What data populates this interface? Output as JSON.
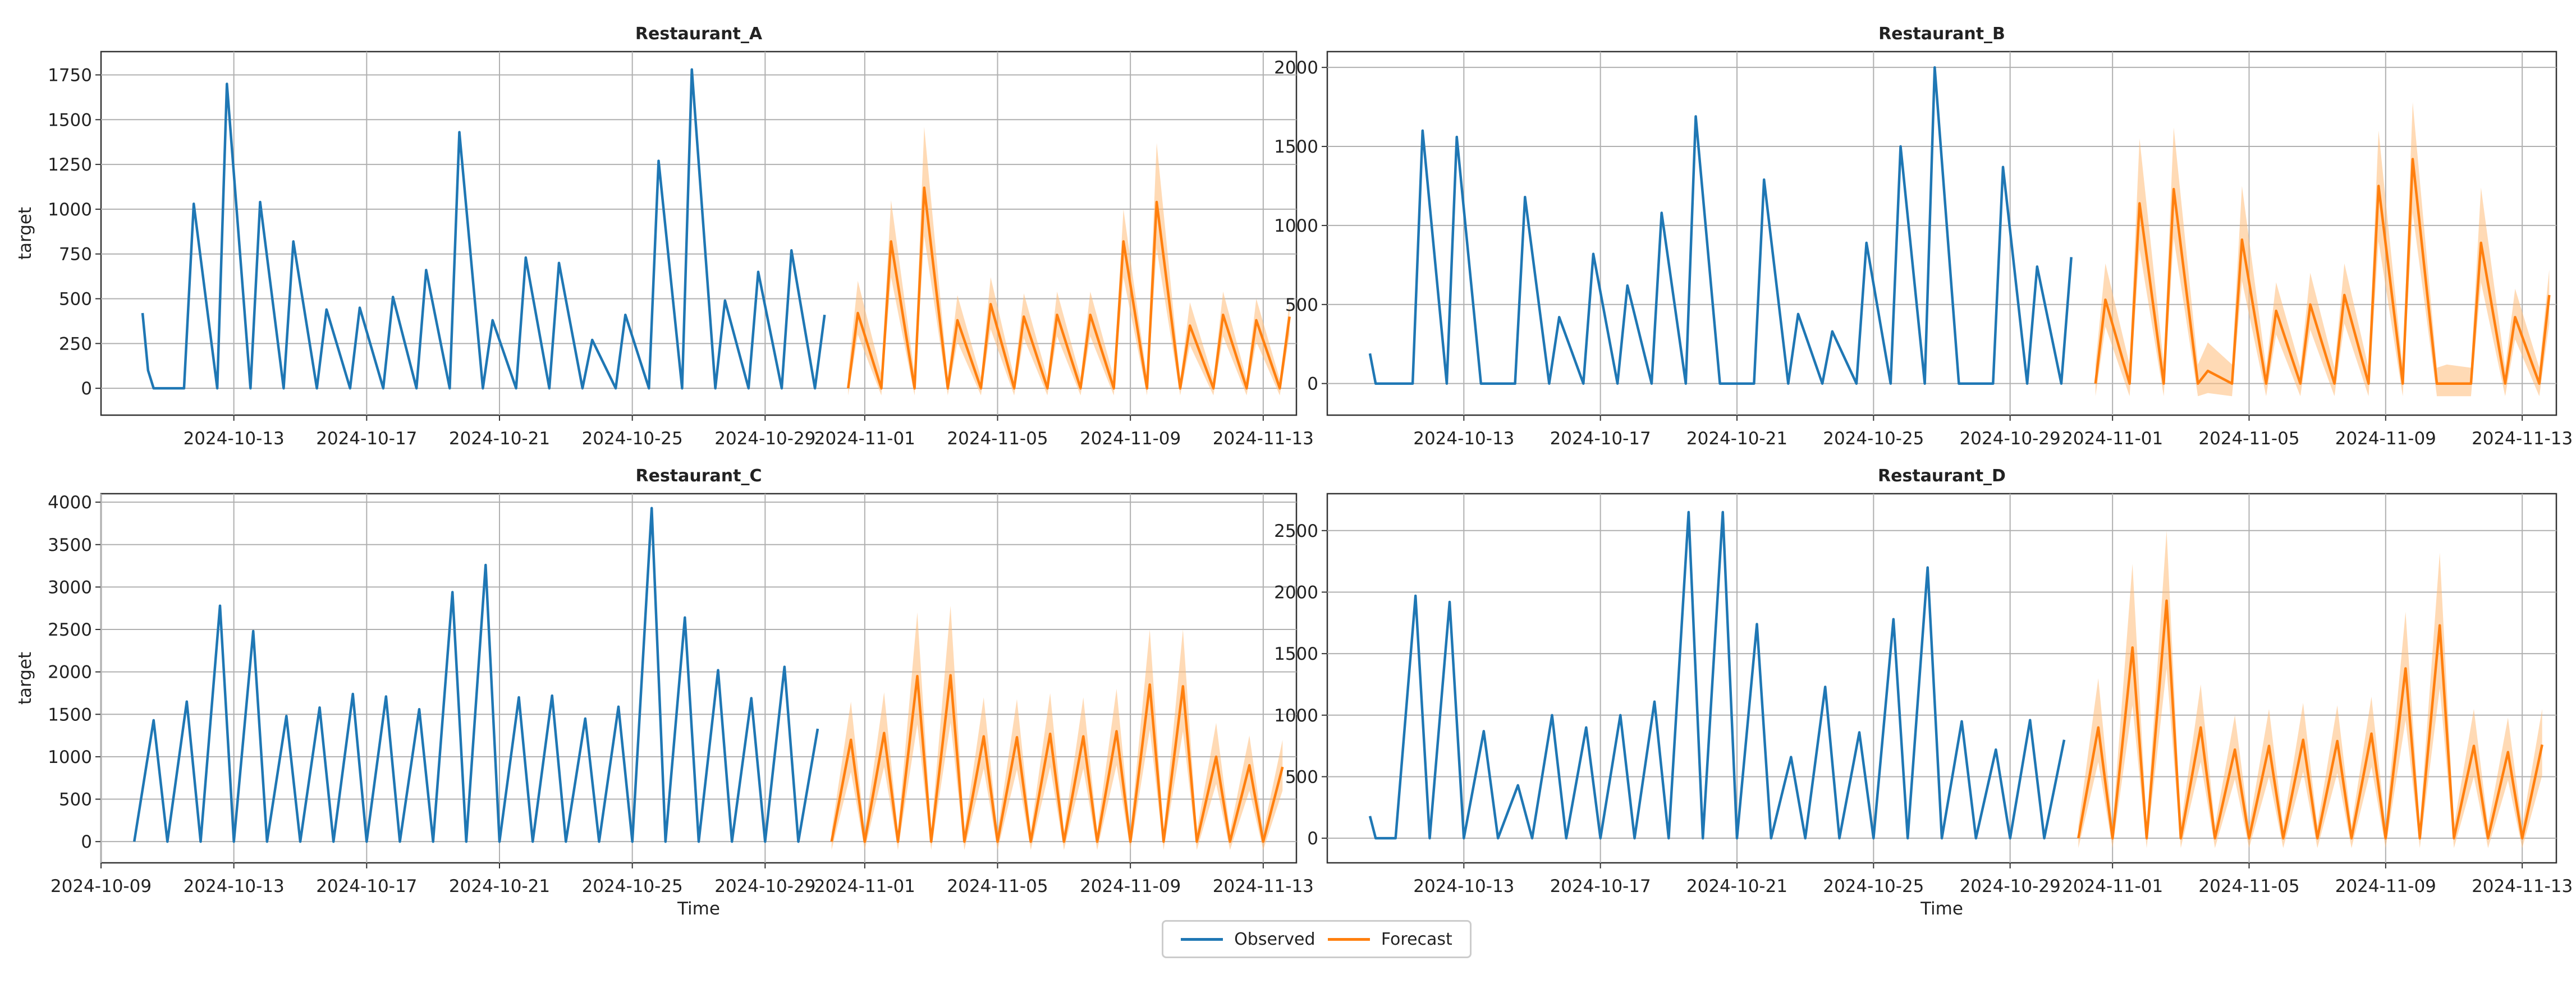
{
  "legend": {
    "observed_label": "Observed",
    "forecast_label": "Forecast",
    "observed_color": "#1f77b4",
    "forecast_color": "#ff7f0e",
    "forecast_band_color": "#ffbb78"
  },
  "chart_data": [
    {
      "type": "line",
      "title": "Restaurant_A",
      "xlabel": "",
      "ylabel": "target",
      "xlim": [
        "2024-10-09",
        "2024-11-14"
      ],
      "ylim": [
        -150,
        1880
      ],
      "yticks": [
        0,
        250,
        500,
        750,
        1000,
        1250,
        1500,
        1750
      ],
      "xticks": [
        "2024-10-13",
        "2024-10-17",
        "2024-10-21",
        "2024-10-25",
        "2024-10-29",
        "2024-11-01",
        "2024-11-05",
        "2024-11-09",
        "2024-11-13"
      ],
      "grid": true,
      "observed": {
        "x": [
          "2024-10-10 06:00",
          "2024-10-10 10:00",
          "2024-10-10 14:00",
          "2024-10-11 12:00",
          "2024-10-11 19:00",
          "2024-10-12 12:00",
          "2024-10-12 19:00",
          "2024-10-13 12:00",
          "2024-10-13 19:00",
          "2024-10-14 12:00",
          "2024-10-14 19:00",
          "2024-10-15 12:00",
          "2024-10-15 19:00",
          "2024-10-16 12:00",
          "2024-10-16 19:00",
          "2024-10-17 12:00",
          "2024-10-17 19:00",
          "2024-10-18 12:00",
          "2024-10-18 19:00",
          "2024-10-19 12:00",
          "2024-10-19 19:00",
          "2024-10-20 12:00",
          "2024-10-20 19:00",
          "2024-10-21 12:00",
          "2024-10-21 19:00",
          "2024-10-22 12:00",
          "2024-10-22 19:00",
          "2024-10-23 12:00",
          "2024-10-23 19:00",
          "2024-10-24 12:00",
          "2024-10-24 19:00",
          "2024-10-25 12:00",
          "2024-10-25 19:00",
          "2024-10-26 12:00",
          "2024-10-26 19:00",
          "2024-10-27 12:00",
          "2024-10-27 19:00",
          "2024-10-28 12:00",
          "2024-10-28 19:00",
          "2024-10-29 12:00",
          "2024-10-29 19:00",
          "2024-10-30 12:00",
          "2024-10-30 19:00"
        ],
        "y": [
          420,
          100,
          0,
          0,
          1030,
          0,
          1700,
          0,
          1040,
          0,
          820,
          0,
          440,
          0,
          450,
          0,
          510,
          0,
          660,
          0,
          1430,
          0,
          380,
          0,
          730,
          0,
          700,
          0,
          270,
          0,
          410,
          0,
          1270,
          0,
          1780,
          0,
          490,
          0,
          650,
          0,
          770,
          0,
          410
        ]
      },
      "forecast": {
        "x": [
          "2024-10-31 12:00",
          "2024-10-31 19:00",
          "2024-11-01 12:00",
          "2024-11-01 19:00",
          "2024-11-02 12:00",
          "2024-11-02 19:00",
          "2024-11-03 12:00",
          "2024-11-03 19:00",
          "2024-11-04 12:00",
          "2024-11-04 19:00",
          "2024-11-05 12:00",
          "2024-11-05 19:00",
          "2024-11-06 12:00",
          "2024-11-06 19:00",
          "2024-11-07 12:00",
          "2024-11-07 19:00",
          "2024-11-08 12:00",
          "2024-11-08 19:00",
          "2024-11-09 12:00",
          "2024-11-09 19:00",
          "2024-11-10 12:00",
          "2024-11-10 19:00",
          "2024-11-11 12:00",
          "2024-11-11 19:00",
          "2024-11-12 12:00",
          "2024-11-12 19:00",
          "2024-11-13 12:00",
          "2024-11-13 19:00"
        ],
        "y": [
          0,
          420,
          0,
          820,
          0,
          1120,
          0,
          380,
          0,
          470,
          0,
          400,
          0,
          410,
          0,
          410,
          0,
          820,
          0,
          1040,
          0,
          350,
          0,
          410,
          0,
          380,
          0,
          400
        ],
        "upper": [
          80,
          600,
          80,
          1050,
          80,
          1460,
          60,
          520,
          60,
          620,
          60,
          530,
          60,
          540,
          60,
          540,
          60,
          1000,
          60,
          1370,
          50,
          480,
          50,
          540,
          50,
          500,
          50,
          480
        ],
        "lower": [
          -40,
          300,
          -40,
          620,
          -40,
          850,
          -40,
          260,
          -40,
          330,
          -40,
          280,
          -40,
          290,
          -40,
          290,
          -40,
          620,
          -40,
          780,
          -40,
          240,
          -40,
          290,
          -40,
          260,
          -40,
          300
        ]
      }
    },
    {
      "type": "line",
      "title": "Restaurant_B",
      "xlabel": "",
      "ylabel": "",
      "xlim": [
        "2024-10-09",
        "2024-11-14"
      ],
      "ylim": [
        -200,
        2100
      ],
      "yticks": [
        0,
        500,
        1000,
        1500,
        2000
      ],
      "xticks": [
        "2024-10-13",
        "2024-10-17",
        "2024-10-21",
        "2024-10-25",
        "2024-10-29",
        "2024-11-01",
        "2024-11-05",
        "2024-11-09",
        "2024-11-13"
      ],
      "grid": true,
      "observed": {
        "x": [
          "2024-10-10 06:00",
          "2024-10-10 10:00",
          "2024-10-11 12:00",
          "2024-10-11 19:00",
          "2024-10-12 12:00",
          "2024-10-12 19:00",
          "2024-10-13 12:00",
          "2024-10-13 19:00",
          "2024-10-14 12:00",
          "2024-10-14 19:00",
          "2024-10-15 12:00",
          "2024-10-15 19:00",
          "2024-10-16 12:00",
          "2024-10-16 19:00",
          "2024-10-17 12:00",
          "2024-10-17 19:00",
          "2024-10-18 12:00",
          "2024-10-18 19:00",
          "2024-10-19 12:00",
          "2024-10-19 19:00",
          "2024-10-20 12:00",
          "2024-10-20 19:00",
          "2024-10-21 12:00",
          "2024-10-21 19:00",
          "2024-10-22 12:00",
          "2024-10-22 19:00",
          "2024-10-23 12:00",
          "2024-10-23 19:00",
          "2024-10-24 12:00",
          "2024-10-24 19:00",
          "2024-10-25 12:00",
          "2024-10-25 19:00",
          "2024-10-26 12:00",
          "2024-10-26 19:00",
          "2024-10-27 12:00",
          "2024-10-27 19:00",
          "2024-10-28 12:00",
          "2024-10-28 19:00",
          "2024-10-29 12:00",
          "2024-10-29 19:00",
          "2024-10-30 12:00",
          "2024-10-30 19:00"
        ],
        "y": [
          190,
          0,
          0,
          1600,
          0,
          1560,
          0,
          0,
          0,
          1180,
          0,
          420,
          0,
          820,
          0,
          620,
          0,
          1080,
          0,
          1690,
          0,
          0,
          0,
          1290,
          0,
          440,
          0,
          330,
          0,
          890,
          0,
          1500,
          0,
          2000,
          0,
          0,
          0,
          1370,
          0,
          740,
          0,
          800
        ]
      },
      "forecast": {
        "x": [
          "2024-10-31 12:00",
          "2024-10-31 19:00",
          "2024-11-01 12:00",
          "2024-11-01 19:00",
          "2024-11-02 12:00",
          "2024-11-02 19:00",
          "2024-11-03 12:00",
          "2024-11-03 19:00",
          "2024-11-04 12:00",
          "2024-11-04 19:00",
          "2024-11-05 12:00",
          "2024-11-05 19:00",
          "2024-11-06 12:00",
          "2024-11-06 19:00",
          "2024-11-07 12:00",
          "2024-11-07 19:00",
          "2024-11-08 12:00",
          "2024-11-08 19:00",
          "2024-11-09 12:00",
          "2024-11-09 19:00",
          "2024-11-10 12:00",
          "2024-11-10 19:00",
          "2024-11-11 12:00",
          "2024-11-11 19:00",
          "2024-11-12 12:00",
          "2024-11-12 19:00",
          "2024-11-13 12:00",
          "2024-11-13 19:00"
        ],
        "y": [
          0,
          530,
          0,
          1140,
          0,
          1230,
          0,
          80,
          0,
          910,
          0,
          460,
          0,
          500,
          0,
          560,
          0,
          1250,
          0,
          1420,
          0,
          0,
          0,
          890,
          0,
          420,
          0,
          560
        ],
        "upper": [
          120,
          760,
          120,
          1550,
          120,
          1620,
          120,
          260,
          120,
          1250,
          100,
          640,
          100,
          700,
          100,
          760,
          100,
          1600,
          100,
          1780,
          100,
          120,
          100,
          1240,
          100,
          600,
          100,
          720
        ],
        "lower": [
          -80,
          360,
          -80,
          850,
          -80,
          920,
          -80,
          -60,
          -80,
          650,
          -80,
          310,
          -80,
          340,
          -80,
          380,
          -80,
          900,
          -80,
          1080,
          -80,
          -80,
          -80,
          640,
          -80,
          280,
          -80,
          380
        ]
      }
    },
    {
      "type": "line",
      "title": "Restaurant_C",
      "xlabel": "Time",
      "ylabel": "target",
      "xlim": [
        "2024-10-09",
        "2024-11-14"
      ],
      "ylim": [
        -250,
        4100
      ],
      "yticks": [
        0,
        500,
        1000,
        1500,
        2000,
        2500,
        3000,
        3500,
        4000
      ],
      "xticks": [
        "2024-10-09",
        "2024-10-13",
        "2024-10-17",
        "2024-10-21",
        "2024-10-25",
        "2024-10-29",
        "2024-11-01",
        "2024-11-05",
        "2024-11-09",
        "2024-11-13"
      ],
      "grid": true,
      "observed": {
        "x": [
          "2024-10-10 00:00",
          "2024-10-10 14:00",
          "2024-10-11 00:00",
          "2024-10-11 14:00",
          "2024-10-12 00:00",
          "2024-10-12 14:00",
          "2024-10-13 00:00",
          "2024-10-13 14:00",
          "2024-10-14 00:00",
          "2024-10-14 14:00",
          "2024-10-15 00:00",
          "2024-10-15 14:00",
          "2024-10-16 00:00",
          "2024-10-16 14:00",
          "2024-10-17 00:00",
          "2024-10-17 14:00",
          "2024-10-18 00:00",
          "2024-10-18 14:00",
          "2024-10-19 00:00",
          "2024-10-19 14:00",
          "2024-10-20 00:00",
          "2024-10-20 14:00",
          "2024-10-21 00:00",
          "2024-10-21 14:00",
          "2024-10-22 00:00",
          "2024-10-22 14:00",
          "2024-10-23 00:00",
          "2024-10-23 14:00",
          "2024-10-24 00:00",
          "2024-10-24 14:00",
          "2024-10-25 00:00",
          "2024-10-25 14:00",
          "2024-10-26 00:00",
          "2024-10-26 14:00",
          "2024-10-27 00:00",
          "2024-10-27 14:00",
          "2024-10-28 00:00",
          "2024-10-28 14:00",
          "2024-10-29 00:00",
          "2024-10-29 14:00",
          "2024-10-30 00:00",
          "2024-10-30 14:00"
        ],
        "y": [
          0,
          1430,
          0,
          1650,
          0,
          2780,
          0,
          2480,
          0,
          1480,
          0,
          1580,
          0,
          1740,
          0,
          1710,
          0,
          1560,
          0,
          2940,
          0,
          3260,
          0,
          1700,
          0,
          1720,
          0,
          1450,
          0,
          1590,
          0,
          3930,
          0,
          2640,
          0,
          2020,
          0,
          1690,
          0,
          2060,
          0,
          1330
        ]
      },
      "forecast": {
        "x": [
          "2024-10-31 00:00",
          "2024-10-31 14:00",
          "2024-11-01 00:00",
          "2024-11-01 14:00",
          "2024-11-02 00:00",
          "2024-11-02 14:00",
          "2024-11-03 00:00",
          "2024-11-03 14:00",
          "2024-11-04 00:00",
          "2024-11-04 14:00",
          "2024-11-05 00:00",
          "2024-11-05 14:00",
          "2024-11-06 00:00",
          "2024-11-06 14:00",
          "2024-11-07 00:00",
          "2024-11-07 14:00",
          "2024-11-08 00:00",
          "2024-11-08 14:00",
          "2024-11-09 00:00",
          "2024-11-09 14:00",
          "2024-11-10 00:00",
          "2024-11-10 14:00",
          "2024-11-11 00:00",
          "2024-11-11 14:00",
          "2024-11-12 00:00",
          "2024-11-12 14:00",
          "2024-11-13 00:00",
          "2024-11-13 14:00"
        ],
        "y": [
          0,
          1200,
          0,
          1280,
          0,
          1950,
          0,
          1960,
          0,
          1240,
          0,
          1230,
          0,
          1270,
          0,
          1240,
          0,
          1300,
          0,
          1850,
          0,
          1830,
          0,
          1000,
          0,
          900,
          0,
          880
        ],
        "upper": [
          120,
          1650,
          120,
          1760,
          120,
          2700,
          120,
          2780,
          120,
          1700,
          120,
          1680,
          120,
          1750,
          120,
          1700,
          120,
          1800,
          120,
          2500,
          120,
          2500,
          120,
          1400,
          120,
          1250,
          120,
          1200
        ],
        "lower": [
          -100,
          820,
          -100,
          880,
          -100,
          1380,
          -100,
          1400,
          -100,
          860,
          -100,
          850,
          -100,
          880,
          -100,
          860,
          -100,
          900,
          -100,
          1320,
          -100,
          1300,
          -100,
          680,
          -100,
          600,
          -100,
          600
        ]
      }
    },
    {
      "type": "line",
      "title": "Restaurant_D",
      "xlabel": "Time",
      "ylabel": "",
      "xlim": [
        "2024-10-09",
        "2024-11-14"
      ],
      "ylim": [
        -200,
        2800
      ],
      "yticks": [
        0,
        500,
        1000,
        1500,
        2000,
        2500
      ],
      "xticks": [
        "2024-10-13",
        "2024-10-17",
        "2024-10-21",
        "2024-10-25",
        "2024-10-29",
        "2024-11-01",
        "2024-11-05",
        "2024-11-09",
        "2024-11-13"
      ],
      "grid": true,
      "observed": {
        "x": [
          "2024-10-10 06:00",
          "2024-10-10 10:00",
          "2024-10-11 00:00",
          "2024-10-11 14:00",
          "2024-10-12 00:00",
          "2024-10-12 14:00",
          "2024-10-13 00:00",
          "2024-10-13 14:00",
          "2024-10-14 00:00",
          "2024-10-14 14:00",
          "2024-10-15 00:00",
          "2024-10-15 14:00",
          "2024-10-16 00:00",
          "2024-10-16 14:00",
          "2024-10-17 00:00",
          "2024-10-17 14:00",
          "2024-10-18 00:00",
          "2024-10-18 14:00",
          "2024-10-19 00:00",
          "2024-10-19 14:00",
          "2024-10-20 00:00",
          "2024-10-20 14:00",
          "2024-10-21 00:00",
          "2024-10-21 14:00",
          "2024-10-22 00:00",
          "2024-10-22 14:00",
          "2024-10-23 00:00",
          "2024-10-23 14:00",
          "2024-10-24 00:00",
          "2024-10-24 14:00",
          "2024-10-25 00:00",
          "2024-10-25 14:00",
          "2024-10-26 00:00",
          "2024-10-26 14:00",
          "2024-10-27 00:00",
          "2024-10-27 14:00",
          "2024-10-28 00:00",
          "2024-10-28 14:00",
          "2024-10-29 00:00",
          "2024-10-29 14:00",
          "2024-10-30 00:00",
          "2024-10-30 14:00"
        ],
        "y": [
          180,
          0,
          0,
          1970,
          0,
          1920,
          0,
          870,
          0,
          430,
          0,
          1000,
          0,
          900,
          0,
          1000,
          0,
          1110,
          0,
          2650,
          0,
          2650,
          0,
          1740,
          0,
          660,
          0,
          1230,
          0,
          860,
          0,
          1780,
          0,
          2200,
          0,
          950,
          0,
          720,
          0,
          960,
          0,
          800
        ]
      },
      "forecast": {
        "x": [
          "2024-10-31 00:00",
          "2024-10-31 14:00",
          "2024-11-01 00:00",
          "2024-11-01 14:00",
          "2024-11-02 00:00",
          "2024-11-02 14:00",
          "2024-11-03 00:00",
          "2024-11-03 14:00",
          "2024-11-04 00:00",
          "2024-11-04 14:00",
          "2024-11-05 00:00",
          "2024-11-05 14:00",
          "2024-11-06 00:00",
          "2024-11-06 14:00",
          "2024-11-07 00:00",
          "2024-11-07 14:00",
          "2024-11-08 00:00",
          "2024-11-08 14:00",
          "2024-11-09 00:00",
          "2024-11-09 14:00",
          "2024-11-10 00:00",
          "2024-11-10 14:00",
          "2024-11-11 00:00",
          "2024-11-11 14:00",
          "2024-11-12 00:00",
          "2024-11-12 14:00",
          "2024-11-13 00:00",
          "2024-11-13 14:00"
        ],
        "y": [
          0,
          900,
          0,
          1550,
          0,
          1930,
          0,
          900,
          0,
          720,
          0,
          750,
          0,
          800,
          0,
          790,
          0,
          850,
          0,
          1380,
          0,
          1730,
          0,
          750,
          0,
          700,
          0,
          760
        ],
        "upper": [
          100,
          1300,
          100,
          2230,
          100,
          2500,
          100,
          1250,
          100,
          1000,
          100,
          1050,
          100,
          1100,
          100,
          1080,
          100,
          1150,
          100,
          1840,
          100,
          2320,
          100,
          1050,
          100,
          980,
          100,
          1050
        ],
        "lower": [
          -80,
          620,
          -80,
          1080,
          -80,
          1380,
          -80,
          620,
          -80,
          480,
          -80,
          500,
          -80,
          540,
          -80,
          530,
          -80,
          580,
          -80,
          960,
          -80,
          1220,
          -80,
          500,
          -80,
          470,
          -80,
          510
        ]
      }
    }
  ]
}
